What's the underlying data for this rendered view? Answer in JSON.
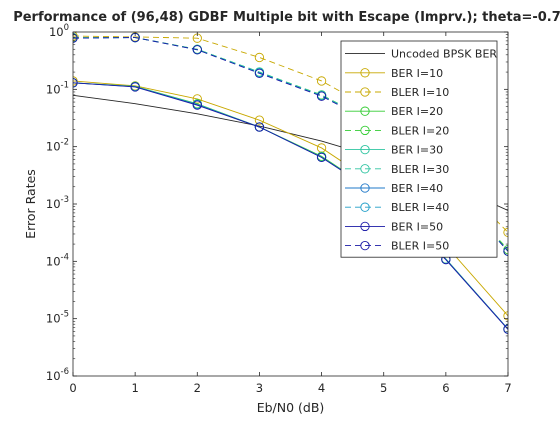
{
  "chart_data": {
    "type": "line",
    "title": "Performance of (96,48) GDBF Multiple bit with Escape (Imprv.); theta=-0.7",
    "xlabel": "Eb/N0 (dB)",
    "ylabel": "Error Rates",
    "xlim": [
      0,
      7
    ],
    "ylim": [
      1e-06,
      1
    ],
    "yscale": "log",
    "grid": false,
    "legend_position": "top-right",
    "x": [
      0,
      1,
      2,
      3,
      4,
      5,
      6,
      7
    ],
    "x_ticks": [
      0,
      1,
      2,
      3,
      4,
      5,
      6,
      7
    ],
    "y_ticks": [
      1e-06,
      1e-05,
      0.0001,
      0.001,
      0.01,
      0.1,
      1
    ],
    "y_tick_labels": [
      {
        "base": "10",
        "exp": "-6"
      },
      {
        "base": "10",
        "exp": "-5"
      },
      {
        "base": "10",
        "exp": "-4"
      },
      {
        "base": "10",
        "exp": "-3"
      },
      {
        "base": "10",
        "exp": "-2"
      },
      {
        "base": "10",
        "exp": "-1"
      },
      {
        "base": "10",
        "exp": "0"
      }
    ],
    "series": [
      {
        "name": "Uncoded BPSK BER",
        "color": "#262626",
        "dash": "solid",
        "marker": "none",
        "values": [
          0.0786,
          0.0563,
          0.0375,
          0.0229,
          0.0125,
          0.00595,
          0.00239,
          0.00077
        ]
      },
      {
        "name": "BER I=10",
        "color": "#c8a800",
        "dash": "solid",
        "marker": "circle",
        "values": [
          0.14,
          0.115,
          0.068,
          0.029,
          0.0095,
          0.0018,
          0.00019,
          1.12e-05
        ]
      },
      {
        "name": "BLER I=10",
        "color": "#c8a800",
        "dash": "dashed",
        "marker": "circle",
        "values": [
          0.85,
          0.82,
          0.78,
          0.36,
          0.14,
          0.035,
          0.004,
          0.00032
        ]
      },
      {
        "name": "BER I=20",
        "color": "#33cc33",
        "dash": "solid",
        "marker": "circle",
        "values": [
          0.13,
          0.113,
          0.056,
          0.022,
          0.0068,
          0.0013,
          0.00011,
          6.6e-06
        ]
      },
      {
        "name": "BLER I=20",
        "color": "#33cc33",
        "dash": "dashed",
        "marker": "circle",
        "values": [
          0.8,
          0.8,
          0.5,
          0.2,
          0.08,
          0.022,
          0.0025,
          0.00016
        ]
      },
      {
        "name": "BER I=30",
        "color": "#2ec4a0",
        "dash": "solid",
        "marker": "circle",
        "values": [
          0.13,
          0.112,
          0.055,
          0.022,
          0.0066,
          0.0013,
          0.00011,
          6.6e-06
        ]
      },
      {
        "name": "BLER I=30",
        "color": "#2ec4a0",
        "dash": "dashed",
        "marker": "circle",
        "values": [
          0.79,
          0.8,
          0.5,
          0.2,
          0.079,
          0.022,
          0.0025,
          0.00015
        ]
      },
      {
        "name": "BER I=40",
        "color": "#1f78c8",
        "dash": "solid",
        "marker": "circle",
        "values": [
          0.13,
          0.111,
          0.054,
          0.022,
          0.0065,
          0.0013,
          0.000108,
          6.6e-06
        ]
      },
      {
        "name": "BLER I=40",
        "color": "#1f9ec8",
        "dash": "dashed",
        "marker": "circle",
        "values": [
          0.79,
          0.8,
          0.49,
          0.195,
          0.077,
          0.021,
          0.0024,
          0.00015
        ]
      },
      {
        "name": "BER I=50",
        "color": "#1a1aa6",
        "dash": "solid",
        "marker": "circle",
        "values": [
          0.13,
          0.11,
          0.053,
          0.022,
          0.0065,
          0.00128,
          0.000107,
          6.5e-06
        ]
      },
      {
        "name": "BLER I=50",
        "color": "#1a1aa6",
        "dash": "dashed",
        "marker": "circle",
        "values": [
          0.78,
          0.8,
          0.49,
          0.19,
          0.076,
          0.021,
          0.0024,
          0.00015
        ]
      }
    ]
  }
}
